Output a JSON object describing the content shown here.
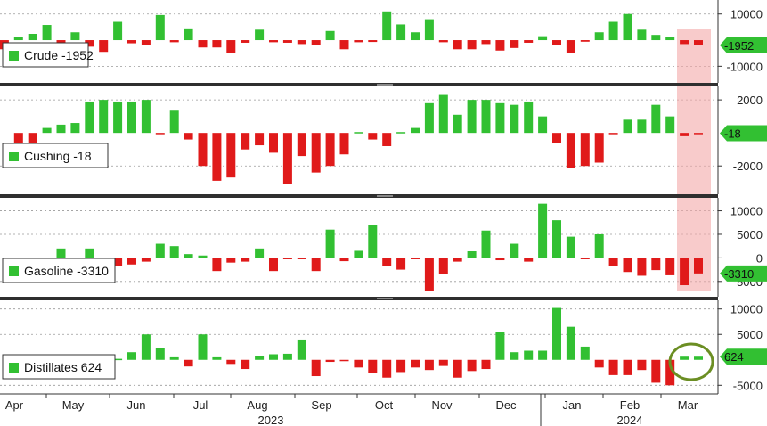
{
  "chart_data": [
    {
      "type": "bar",
      "panel": "crude",
      "series": [
        {
          "name": "Crude",
          "values": [
            -3000,
            -3500,
            1200,
            2400,
            5800,
            -5000,
            3000,
            -2500,
            -4500,
            7000,
            -1200,
            -2000,
            9600,
            -800,
            4500,
            -2800,
            -2800,
            -5000,
            -1000,
            4000,
            -800,
            -1000,
            -1500,
            -2000,
            3500,
            -3500,
            -800,
            -700,
            11000,
            6000,
            3000,
            8000,
            -800,
            -3500,
            -3500,
            -1500,
            -4000,
            -3000,
            -1000,
            1500,
            -2000,
            -4800,
            -600,
            3000,
            7000,
            10000,
            4000,
            2000,
            1200,
            -1500,
            -1952
          ]
        }
      ],
      "last_value": -1952,
      "last_label": "-1952",
      "legend_label": "Crude -1952",
      "ylim": [
        -15000,
        14000
      ],
      "yticks": [
        10000,
        -10000
      ],
      "ytick_labels": [
        "10000",
        "-10000"
      ],
      "zero_label": "-",
      "colors": {
        "positive": "#32c032",
        "negative": "#e01a1a"
      }
    },
    {
      "type": "bar",
      "panel": "cushing",
      "series": [
        {
          "name": "Cushing",
          "values": [
            -600,
            -1200,
            300,
            500,
            600,
            1900,
            2000,
            1900,
            1900,
            2000,
            -50,
            1400,
            -400,
            -2000,
            -2900,
            -2700,
            -1000,
            -750,
            -1200,
            -3100,
            -1400,
            -2400,
            -2000,
            -1300,
            50,
            -400,
            -800,
            50,
            300,
            1800,
            2300,
            1100,
            2000,
            2000,
            1800,
            1700,
            1900,
            1000,
            -600,
            -2100,
            -2000,
            -1800,
            -50,
            800,
            800,
            1700,
            1000,
            -200,
            -18
          ]
        }
      ],
      "last_value": -18,
      "last_label": "-18",
      "legend_label": "Cushing -18",
      "ylim": [
        -3500,
        2600
      ],
      "yticks": [
        2000,
        -2000
      ],
      "ytick_labels": [
        "2000",
        "-2000"
      ],
      "colors": {
        "positive": "#32c032",
        "negative": "#e01a1a"
      }
    },
    {
      "type": "bar",
      "panel": "gasoline",
      "series": [
        {
          "name": "Gasoline",
          "values": [
            2000,
            -2500,
            2000,
            -2000,
            -1800,
            -1400,
            -800,
            3000,
            2500,
            800,
            500,
            -2800,
            -1000,
            -800,
            2000,
            -2800,
            -300,
            -300,
            -2800,
            6000,
            -700,
            1500,
            7000,
            -1800,
            -2500,
            -300,
            -7000,
            -3400,
            -800,
            1400,
            5800,
            -500,
            3000,
            -800,
            11500,
            8000,
            4500,
            -300,
            5000,
            -1800,
            -3000,
            -3800,
            -2600,
            -3700,
            -5800,
            -3310
          ]
        }
      ],
      "last_value": -3310,
      "last_label": "-3310",
      "legend_label": "Gasoline -3310",
      "ylim": [
        -7500,
        12000
      ],
      "yticks": [
        10000,
        5000,
        0,
        -5000
      ],
      "ytick_labels": [
        "10000",
        "5000",
        "0",
        "-5000"
      ],
      "colors": {
        "positive": "#32c032",
        "negative": "#e01a1a"
      }
    },
    {
      "type": "bar",
      "panel": "distillates",
      "series": [
        {
          "name": "Distillates",
          "values": [
            200,
            200,
            200,
            200,
            200,
            200,
            200,
            1500,
            5000,
            2300,
            500,
            -1300,
            5000,
            500,
            -800,
            -1800,
            700,
            1100,
            1200,
            4000,
            -3200,
            -400,
            -200,
            -1500,
            -2500,
            -3500,
            -2400,
            -1500,
            -2000,
            -1200,
            -3500,
            -2200,
            -1800,
            5500,
            1500,
            1800,
            1800,
            10200,
            6500,
            2600,
            -1500,
            -3000,
            -3000,
            -2000,
            -4500,
            -5000,
            624,
            624
          ]
        }
      ],
      "last_value": 624,
      "last_label": "624",
      "legend_label": "Distillates 624",
      "ylim": [
        -6000,
        11000
      ],
      "yticks": [
        10000,
        5000,
        -5000
      ],
      "ytick_labels": [
        "10000",
        "5000",
        "-5000"
      ],
      "colors": {
        "positive": "#32c032",
        "negative": "#e01a1a"
      }
    }
  ],
  "x_axis": {
    "months": [
      "Apr",
      "May",
      "Jun",
      "Jul",
      "Aug",
      "Sep",
      "Oct",
      "Nov",
      "Dec",
      "Jan",
      "Feb",
      "Mar"
    ],
    "years": [
      "2023",
      "2024"
    ]
  },
  "annotations": {
    "highlight_color": "#f4a9a9",
    "circle_color": "#6b8e23"
  }
}
